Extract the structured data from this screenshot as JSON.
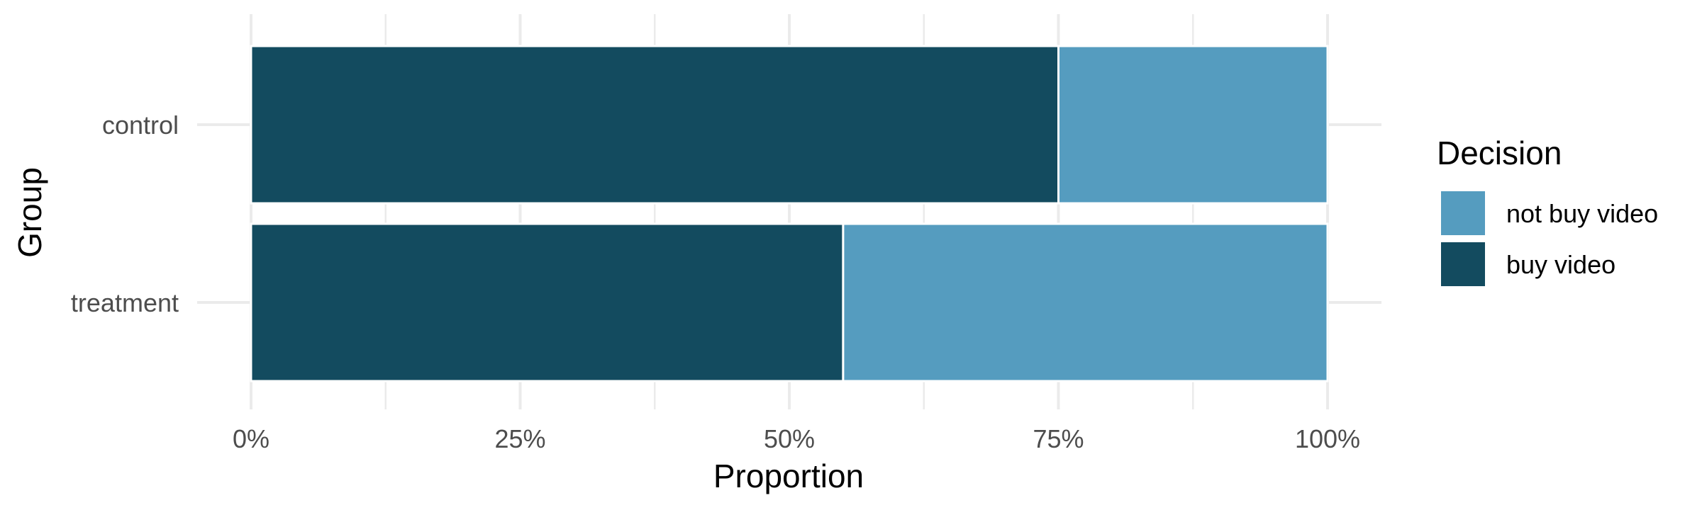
{
  "chart_data": {
    "type": "bar",
    "orientation": "horizontal",
    "stacked": true,
    "categories": [
      "control",
      "treatment"
    ],
    "series": [
      {
        "name": "buy video",
        "values": [
          0.75,
          0.55
        ],
        "color": "#134b5f"
      },
      {
        "name": "not buy video",
        "values": [
          0.25,
          0.45
        ],
        "color": "#559cbf"
      }
    ],
    "xlabel": "Proportion",
    "ylabel": "Group",
    "xlim": [
      0,
      1
    ],
    "xticks": [
      0,
      0.25,
      0.5,
      0.75,
      1
    ],
    "xtick_labels": [
      "0%",
      "25%",
      "50%",
      "75%",
      "100%"
    ],
    "grid": true,
    "legend": {
      "title": "Decision",
      "position": "right",
      "entries": [
        {
          "label": "not buy video",
          "color": "#559cbf"
        },
        {
          "label": "buy video",
          "color": "#134b5f"
        }
      ]
    }
  }
}
